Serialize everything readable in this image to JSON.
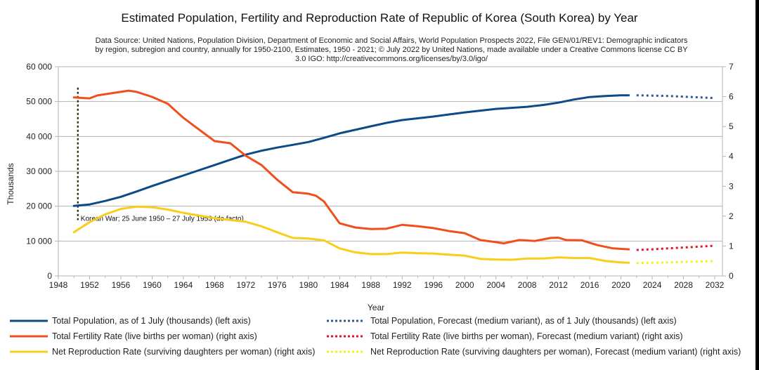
{
  "chart_data": {
    "type": "line",
    "title": "Estimated Population, Fertility and Reproduction Rate of Republic of Korea (South Korea) by Year",
    "subtitle_lines": [
      "Data Source: United Nations, Population Division, Department of Economic and Social Affairs, World Population Prospects 2022, File GEN/01/REV1: Demographic indicators",
      "by region, subregion and country, annually for 1950-2100, Estimates, 1950 - 2021; © July 2022 by United Nations, made available under a Creative Commons license CC BY",
      "3.0 IGO: http://creativecommons.org/licenses/by/3.0/igo/"
    ],
    "xlabel": "Year",
    "ylabel": "Thousands",
    "y2label": "",
    "xlim": [
      1948,
      2033
    ],
    "ylim": [
      0,
      60000
    ],
    "y2lim": [
      0,
      7
    ],
    "x_ticks": [
      "1948",
      "1952",
      "1956",
      "1960",
      "1964",
      "1968",
      "1972",
      "1976",
      "1980",
      "1984",
      "1988",
      "1992",
      "1996",
      "2000",
      "2004",
      "2008",
      "2012",
      "2016",
      "2020",
      "2024",
      "2028",
      "2032"
    ],
    "y_ticks": [
      "0",
      "10 000",
      "20 000",
      "30 000",
      "40 000",
      "50 000",
      "60 000"
    ],
    "y2_ticks": [
      "0",
      "1",
      "2",
      "3",
      "4",
      "5",
      "6",
      "7"
    ],
    "grid": true,
    "legend_position": "bottom",
    "series": [
      {
        "name": "Total Population, as of 1 July (thousands) (left axis)",
        "axis": "left",
        "style": "solid",
        "color": "#0d4a87",
        "x": [
          1950,
          1952,
          1954,
          1956,
          1958,
          1960,
          1962,
          1964,
          1966,
          1968,
          1970,
          1972,
          1974,
          1976,
          1978,
          1980,
          1982,
          1984,
          1986,
          1988,
          1990,
          1992,
          1994,
          1996,
          1998,
          2000,
          2002,
          2004,
          2006,
          2008,
          2010,
          2012,
          2014,
          2016,
          2018,
          2020,
          2021
        ],
        "values": [
          20100,
          20500,
          21500,
          22700,
          24200,
          25800,
          27300,
          28800,
          30300,
          31800,
          33300,
          34800,
          35900,
          36800,
          37600,
          38400,
          39600,
          40900,
          41900,
          42900,
          43900,
          44700,
          45200,
          45700,
          46300,
          46900,
          47400,
          47900,
          48200,
          48500,
          49000,
          49700,
          50600,
          51300,
          51600,
          51800,
          51800
        ]
      },
      {
        "name": "Total Fertility Rate (live births per woman) (right axis)",
        "axis": "right",
        "style": "solid",
        "color": "#f04e1c",
        "x": [
          1950,
          1952,
          1953,
          1955,
          1957,
          1958,
          1960,
          1962,
          1964,
          1966,
          1968,
          1970,
          1972,
          1974,
          1976,
          1978,
          1980,
          1981,
          1982,
          1984,
          1986,
          1988,
          1990,
          1992,
          1994,
          1996,
          1998,
          2000,
          2002,
          2004,
          2005,
          2007,
          2009,
          2011,
          2012,
          2013,
          2015,
          2017,
          2019,
          2021
        ],
        "values": [
          5.97,
          5.94,
          6.04,
          6.12,
          6.2,
          6.16,
          5.99,
          5.76,
          5.29,
          4.9,
          4.51,
          4.44,
          4.02,
          3.71,
          3.22,
          2.8,
          2.75,
          2.68,
          2.49,
          1.76,
          1.62,
          1.57,
          1.58,
          1.71,
          1.66,
          1.6,
          1.5,
          1.43,
          1.2,
          1.13,
          1.09,
          1.2,
          1.17,
          1.27,
          1.28,
          1.2,
          1.19,
          1.03,
          0.92,
          0.89
        ]
      },
      {
        "name": "Net Reproduction Rate (surviving daughters per woman) (right axis)",
        "axis": "right",
        "style": "solid",
        "color": "#f8cd1c",
        "x": [
          1950,
          1952,
          1954,
          1956,
          1958,
          1960,
          1962,
          1964,
          1966,
          1968,
          1970,
          1972,
          1974,
          1976,
          1978,
          1980,
          1982,
          1984,
          1986,
          1988,
          1990,
          1992,
          1994,
          1996,
          1998,
          2000,
          2002,
          2004,
          2006,
          2008,
          2010,
          2012,
          2014,
          2016,
          2018,
          2020,
          2021
        ],
        "values": [
          1.46,
          1.8,
          2.06,
          2.24,
          2.32,
          2.3,
          2.22,
          2.11,
          2.02,
          1.93,
          1.87,
          1.81,
          1.66,
          1.46,
          1.27,
          1.25,
          1.19,
          0.92,
          0.79,
          0.73,
          0.73,
          0.78,
          0.76,
          0.75,
          0.71,
          0.68,
          0.57,
          0.55,
          0.54,
          0.58,
          0.58,
          0.62,
          0.6,
          0.6,
          0.5,
          0.45,
          0.44
        ]
      },
      {
        "name": "Total Population, Forecast (medium variant), as of 1 July (thousands) (left axis)",
        "axis": "left",
        "style": "dotted",
        "color": "#2c5c8f",
        "x": [
          2022,
          2024,
          2026,
          2028,
          2030,
          2032
        ],
        "values": [
          51800,
          51700,
          51600,
          51400,
          51200,
          51000
        ]
      },
      {
        "name": "Total Fertility Rate (live births per woman), Forecast (medium variant) (right axis)",
        "axis": "right",
        "style": "dotted",
        "color": "#e3142a",
        "x": [
          2022,
          2024,
          2026,
          2028,
          2030,
          2032
        ],
        "values": [
          0.87,
          0.89,
          0.92,
          0.95,
          0.98,
          1.01
        ]
      },
      {
        "name": "Net Reproduction Rate (surviving daughters per woman), Forecast (medium variant) (right axis)",
        "axis": "right",
        "style": "dotted",
        "color": "#f5f01a",
        "x": [
          2022,
          2024,
          2026,
          2028,
          2030,
          2032
        ],
        "values": [
          0.43,
          0.44,
          0.45,
          0.47,
          0.48,
          0.5
        ]
      }
    ],
    "annotations": [
      {
        "text": "Korean War; 25 June 1950 – 27 July 1953 (de facto)",
        "x": 1950.5,
        "y_range": [
          16000,
          54000
        ],
        "style": "dashed",
        "color": "#2a2a0a"
      }
    ]
  }
}
